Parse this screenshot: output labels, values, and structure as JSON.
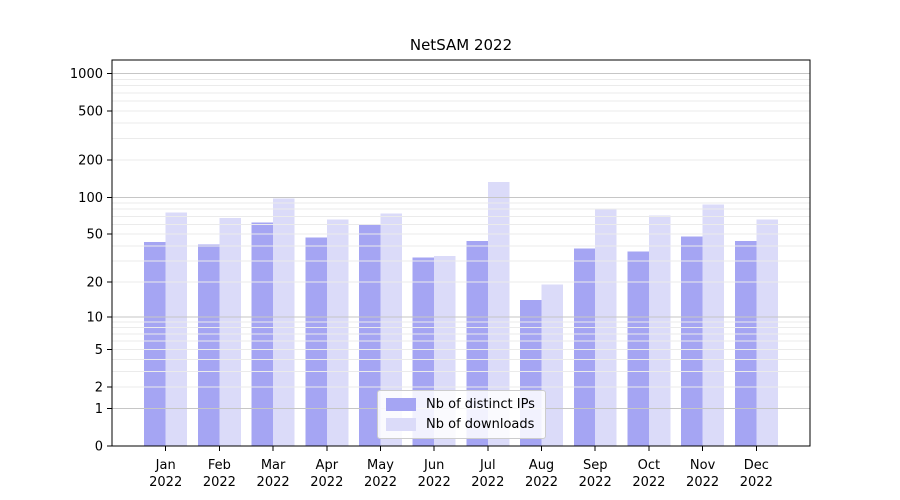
{
  "chart_data": {
    "type": "bar",
    "title": "NetSAM 2022",
    "categories": [
      "Jan 2022",
      "Feb 2022",
      "Mar 2022",
      "Apr 2022",
      "May 2022",
      "Jun 2022",
      "Jul 2022",
      "Aug 2022",
      "Sep 2022",
      "Oct 2022",
      "Nov 2022",
      "Dec 2022"
    ],
    "series": [
      {
        "name": "Nb of distinct IPs",
        "color": "#a5a5f3",
        "values": [
          43,
          41,
          62,
          47,
          60,
          32,
          44,
          14,
          38,
          36,
          48,
          44
        ]
      },
      {
        "name": "Nb of downloads",
        "color": "#dbdbf9",
        "values": [
          75,
          68,
          98,
          66,
          74,
          33,
          133,
          19,
          80,
          71,
          87,
          66
        ]
      }
    ],
    "xlabel": "",
    "ylabel": "",
    "yscale": "symlog(log(1+x))",
    "yticks": [
      0,
      1,
      2,
      5,
      10,
      20,
      50,
      100,
      200,
      500,
      1000
    ],
    "ylim": [
      0,
      1290
    ],
    "grid": true,
    "legend_position": "lower center"
  },
  "colors": {
    "background": "#ffffff",
    "major_grid": "#c6c6c6",
    "minor_grid": "#ebebeb",
    "axis": "#000000",
    "legend_border": "#cccccc"
  }
}
